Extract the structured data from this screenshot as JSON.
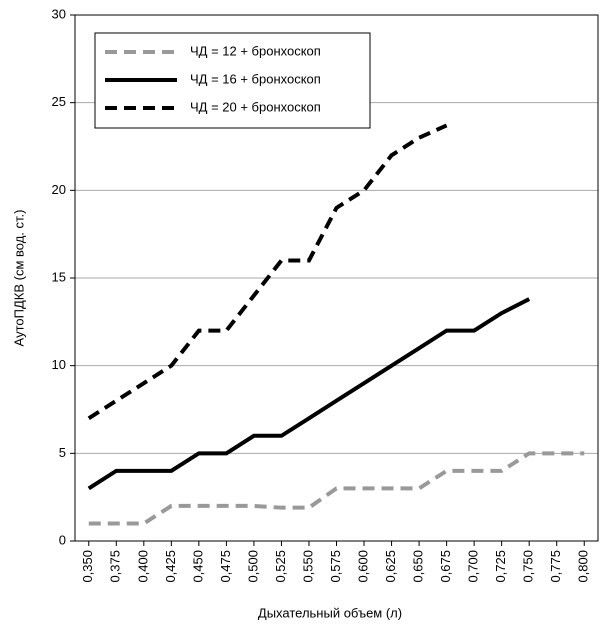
{
  "chart_data": {
    "type": "line",
    "xlabel": "Дыхательный объем (л)",
    "ylabel": "АутоПДКВ (см вод. ст.)",
    "categories": [
      "0,350",
      "0,375",
      "0,400",
      "0,425",
      "0,450",
      "0,475",
      "0,500",
      "0,525",
      "0,550",
      "0,575",
      "0,600",
      "0,625",
      "0,650",
      "0,675",
      "0,700",
      "0,725",
      "0,750",
      "0,775",
      "0,800"
    ],
    "series": [
      {
        "name": "ЧД = 12 + бронхоскоп",
        "color": "#999999",
        "dash": "dashed",
        "values": [
          1,
          1,
          1,
          2,
          2,
          2,
          2,
          1.9,
          1.9,
          3,
          3,
          3,
          3,
          4,
          4,
          4,
          5,
          5,
          5
        ]
      },
      {
        "name": "ЧД = 16 + бронхоскоп",
        "color": "#000000",
        "dash": "solid",
        "values": [
          3,
          4,
          4,
          4,
          5,
          5,
          6,
          6,
          7,
          8,
          9,
          10,
          11,
          12,
          12,
          13,
          13.8,
          null,
          null
        ]
      },
      {
        "name": "ЧД = 20 + бронхоскоп",
        "color": "#000000",
        "dash": "dashed",
        "values": [
          7,
          8,
          9,
          10,
          12,
          12,
          14,
          16,
          16,
          19,
          20,
          22,
          23,
          23.7,
          null,
          null,
          null,
          null,
          null
        ]
      }
    ],
    "ylim": [
      0,
      30
    ],
    "yticks": [
      0,
      5,
      10,
      15,
      20,
      25,
      30
    ],
    "grid": true,
    "legend": "upper left"
  }
}
